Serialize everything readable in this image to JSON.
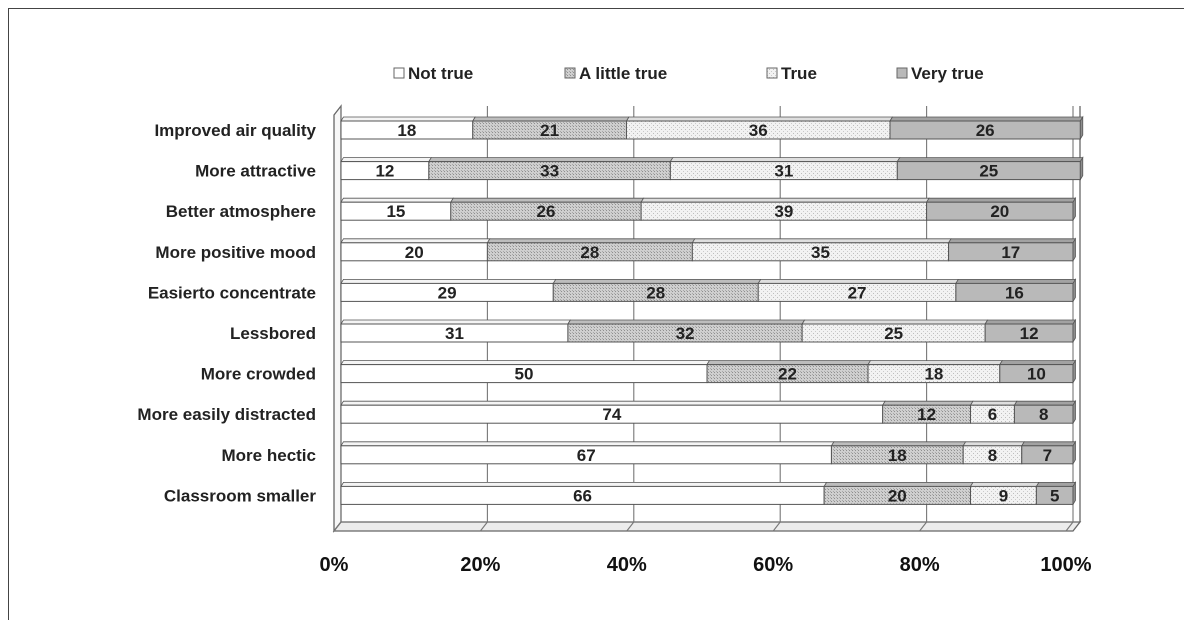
{
  "chart_data": {
    "type": "bar",
    "orientation": "horizontal",
    "stacked": true,
    "percent_stacked": true,
    "three_d": true,
    "title": "",
    "xlabel": "",
    "ylabel": "",
    "xlim": [
      0,
      100
    ],
    "x_ticks": [
      "0%",
      "20%",
      "40%",
      "60%",
      "80%",
      "100%"
    ],
    "grid": true,
    "legend_position": "top",
    "categories": [
      "Improved air quality",
      "More attractive",
      "Better atmosphere",
      "More positive mood",
      "Easierto concentrate",
      "Lessbored",
      "More crowded",
      "More easily distracted",
      "More hectic",
      "Classroom smaller"
    ],
    "series": [
      {
        "name": "Not true",
        "color": "#ffffff",
        "values": [
          18,
          12,
          15,
          20,
          29,
          31,
          50,
          74,
          67,
          66
        ]
      },
      {
        "name": "A little true",
        "color": "#d0d0d0",
        "values": [
          21,
          33,
          26,
          28,
          28,
          32,
          22,
          12,
          18,
          20
        ]
      },
      {
        "name": "True",
        "color": "#ededed",
        "values": [
          36,
          31,
          39,
          35,
          27,
          25,
          18,
          6,
          8,
          9
        ]
      },
      {
        "name": "Very true",
        "color": "#b8b8b8",
        "values": [
          26,
          25,
          20,
          17,
          16,
          12,
          10,
          8,
          7,
          5
        ]
      }
    ]
  }
}
